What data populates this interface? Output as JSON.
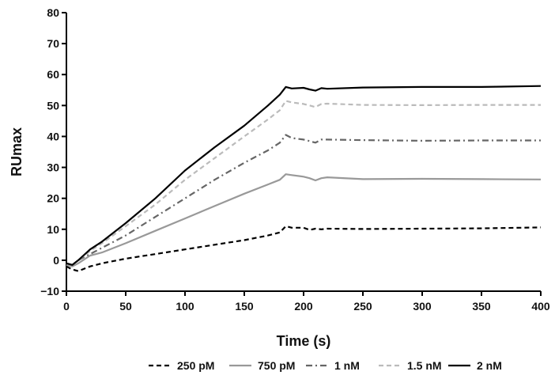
{
  "chart_data": {
    "type": "line",
    "xlabel": "Time (s)",
    "ylabel": "RUmax",
    "xlim": [
      0,
      400
    ],
    "ylim": [
      -10,
      80
    ],
    "x_ticks": [
      0,
      50,
      100,
      150,
      200,
      250,
      300,
      350,
      400
    ],
    "y_ticks": [
      -10,
      0,
      10,
      20,
      30,
      40,
      50,
      60,
      70,
      80
    ],
    "grid": false,
    "legend_position": "bottom",
    "series": [
      {
        "name": "250 pM",
        "color": "#000000",
        "dash": "dashed",
        "x": [
          0,
          5,
          10,
          20,
          30,
          50,
          75,
          100,
          125,
          150,
          170,
          180,
          185,
          190,
          200,
          205,
          210,
          215,
          220,
          250,
          300,
          350,
          400
        ],
        "y": [
          -2,
          -3,
          -3.5,
          -2,
          -1,
          0.5,
          2,
          3.5,
          5,
          6.5,
          8,
          9,
          11,
          10.5,
          10.5,
          9.8,
          10.2,
          10,
          10.2,
          10.1,
          10.2,
          10.3,
          10.6
        ]
      },
      {
        "name": "750 pM",
        "color": "#999999",
        "dash": "solid",
        "x": [
          0,
          5,
          10,
          20,
          30,
          50,
          75,
          100,
          125,
          150,
          170,
          180,
          185,
          190,
          200,
          205,
          210,
          215,
          220,
          250,
          300,
          350,
          400
        ],
        "y": [
          -1.5,
          -2,
          -1,
          1.5,
          2.5,
          5.5,
          9.5,
          13.5,
          17.5,
          21.5,
          24.5,
          26,
          27.8,
          27.5,
          27,
          26.5,
          25.8,
          26.5,
          26.8,
          26.2,
          26.3,
          26.2,
          26.1
        ]
      },
      {
        "name": "1 nM",
        "color": "#666666",
        "dash": "dashdot",
        "x": [
          0,
          5,
          10,
          20,
          30,
          50,
          75,
          100,
          125,
          150,
          170,
          180,
          185,
          190,
          200,
          205,
          210,
          215,
          220,
          250,
          300,
          350,
          400
        ],
        "y": [
          -1,
          -1.5,
          0,
          2,
          4,
          8,
          14,
          20,
          26,
          31.5,
          35.5,
          38,
          40.5,
          39.5,
          39,
          38.5,
          38,
          39,
          39,
          38.8,
          38.6,
          38.7,
          38.7
        ]
      },
      {
        "name": "1.5 nM",
        "color": "#bbbbbb",
        "dash": "dashed",
        "x": [
          0,
          5,
          10,
          20,
          30,
          50,
          75,
          100,
          125,
          150,
          170,
          180,
          185,
          190,
          200,
          205,
          210,
          215,
          220,
          250,
          300,
          350,
          400
        ],
        "y": [
          -1,
          -1.5,
          0,
          3,
          5.5,
          11,
          18,
          26,
          33,
          40,
          45.5,
          48.5,
          51.5,
          51,
          50.5,
          50,
          49.5,
          50.5,
          50.6,
          50.2,
          50.1,
          50.2,
          50.2
        ]
      },
      {
        "name": "2 nM",
        "color": "#000000",
        "dash": "solid",
        "x": [
          0,
          5,
          10,
          20,
          30,
          50,
          75,
          100,
          125,
          150,
          170,
          180,
          185,
          190,
          200,
          205,
          210,
          215,
          220,
          250,
          300,
          350,
          400
        ],
        "y": [
          -1,
          -1.5,
          0,
          3.5,
          6,
          12,
          20,
          29,
          36.5,
          43.5,
          50,
          53.5,
          56,
          55.5,
          55.7,
          55.2,
          54.8,
          55.6,
          55.4,
          55.8,
          56,
          56,
          56.3
        ]
      }
    ]
  }
}
